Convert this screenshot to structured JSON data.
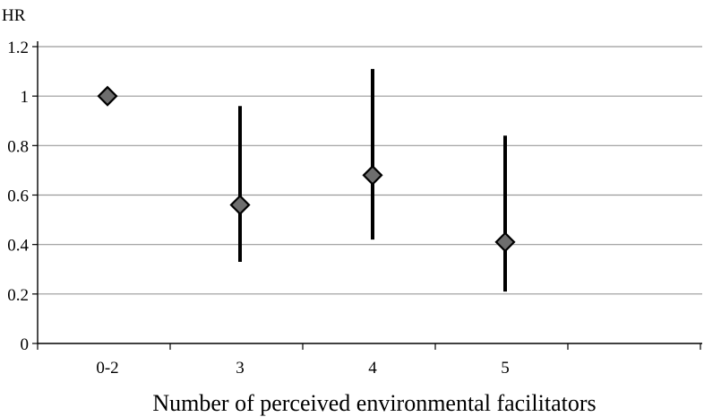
{
  "chart_data": {
    "type": "scatter",
    "title": "",
    "ylabel": "HR",
    "xlabel": "Number of perceived environmental facilitators",
    "categories": [
      "0-2",
      "3",
      "4",
      "5"
    ],
    "series": [
      {
        "values": [
          1.0,
          0.56,
          0.68,
          0.41
        ],
        "ci_lower": [
          null,
          0.33,
          0.42,
          0.21
        ],
        "ci_upper": [
          null,
          0.96,
          1.11,
          0.84
        ]
      }
    ],
    "ylim": [
      0,
      1.2
    ],
    "yticks": [
      "0",
      "0.2",
      "0.4",
      "0.6",
      "0.8",
      "1",
      "1.2"
    ],
    "grid": true,
    "legend": "none",
    "colors": {
      "marker_fill": "#6e6e6e",
      "marker_stroke": "#000000",
      "error_bar": "#000000",
      "grid": "#9a9a9a",
      "axis": "#000000"
    }
  }
}
